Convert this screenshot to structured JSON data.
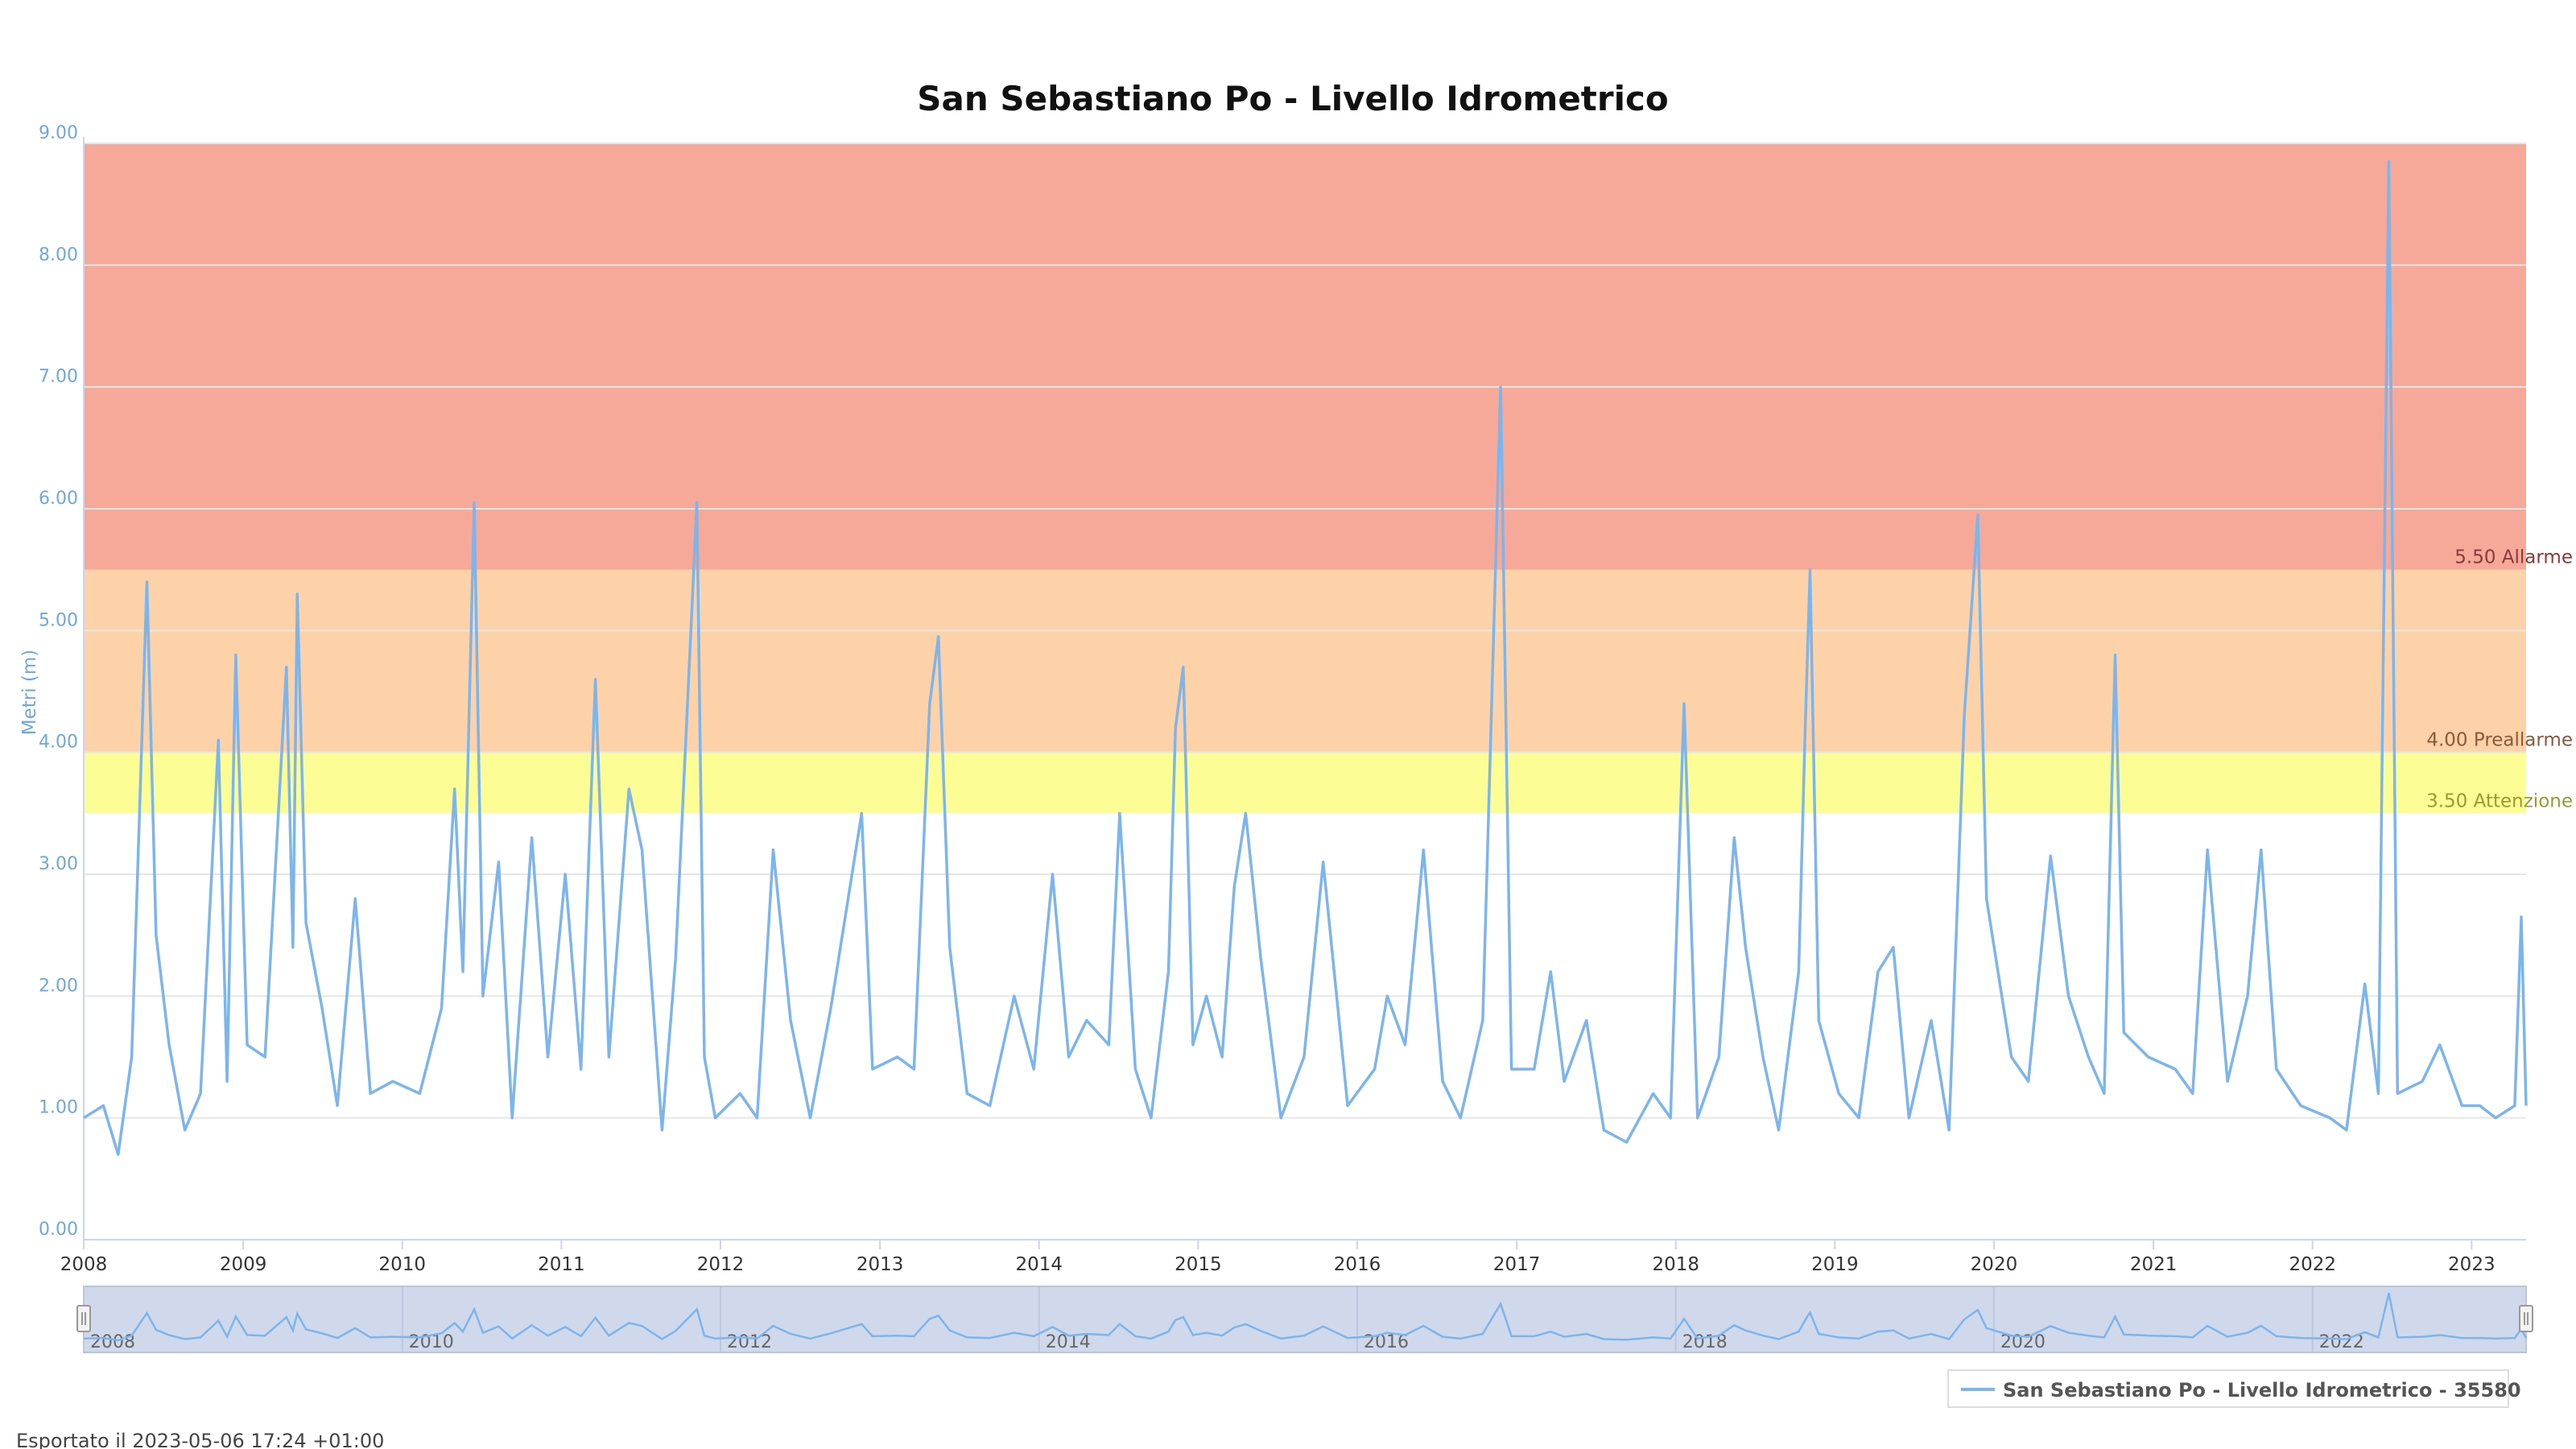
{
  "chart_data": {
    "type": "line",
    "title": "San Sebastiano Po - Livello Idrometrico",
    "ylabel": "Metri (m)",
    "ylim": [
      0,
      9
    ],
    "xlim": [
      "2008-01-01",
      "2023-05-06"
    ],
    "y_ticks": [
      "0.00",
      "1.00",
      "2.00",
      "3.00",
      "4.00",
      "5.00",
      "6.00",
      "7.00",
      "8.00",
      "9.00"
    ],
    "x_ticks": [
      "2008",
      "2009",
      "2010",
      "2011",
      "2012",
      "2013",
      "2014",
      "2015",
      "2016",
      "2017",
      "2018",
      "2019",
      "2020",
      "2021",
      "2022",
      "2023"
    ],
    "navigator_ticks": [
      "2008",
      "2010",
      "2012",
      "2014",
      "2016",
      "2018",
      "2020",
      "2022"
    ],
    "grid": true,
    "legend_position": "bottom-right",
    "thresholds": [
      {
        "value": 3.5,
        "label": "3.50 Attenzione",
        "from": 3.5,
        "to": 4.0,
        "color": "#fdfd96",
        "label_color": "#9a9a30"
      },
      {
        "value": 4.0,
        "label": "4.00 Preallarme",
        "from": 4.0,
        "to": 5.5,
        "color": "#fdd2a8",
        "label_color": "#8a5a3a"
      },
      {
        "value": 5.5,
        "label": "5.50 Allarme",
        "from": 5.5,
        "to": 9.0,
        "color": "#f6a899",
        "label_color": "#8b3a3a"
      }
    ],
    "series": [
      {
        "name": "San Sebastiano Po - Livello Idrometrico - 35580",
        "color": "#7cb5ec",
        "points": [
          [
            "2008-01-01",
            1.0
          ],
          [
            "2008-02-15",
            1.1
          ],
          [
            "2008-03-20",
            0.7
          ],
          [
            "2008-04-20",
            1.5
          ],
          [
            "2008-05-25",
            5.4
          ],
          [
            "2008-06-15",
            2.5
          ],
          [
            "2008-07-15",
            1.6
          ],
          [
            "2008-08-20",
            0.9
          ],
          [
            "2008-09-25",
            1.2
          ],
          [
            "2008-11-05",
            4.1
          ],
          [
            "2008-11-25",
            1.3
          ],
          [
            "2008-12-15",
            4.8
          ],
          [
            "2009-01-10",
            1.6
          ],
          [
            "2009-02-20",
            1.5
          ],
          [
            "2009-04-10",
            4.7
          ],
          [
            "2009-04-25",
            2.4
          ],
          [
            "2009-05-05",
            5.3
          ],
          [
            "2009-05-25",
            2.6
          ],
          [
            "2009-07-01",
            1.9
          ],
          [
            "2009-08-05",
            1.1
          ],
          [
            "2009-09-15",
            2.8
          ],
          [
            "2009-10-20",
            1.2
          ],
          [
            "2009-12-10",
            1.3
          ],
          [
            "2010-02-10",
            1.2
          ],
          [
            "2010-04-01",
            1.9
          ],
          [
            "2010-05-01",
            3.7
          ],
          [
            "2010-05-20",
            2.2
          ],
          [
            "2010-06-15",
            6.05
          ],
          [
            "2010-07-05",
            2.0
          ],
          [
            "2010-08-10",
            3.1
          ],
          [
            "2010-09-10",
            1.0
          ],
          [
            "2010-10-25",
            3.3
          ],
          [
            "2010-12-01",
            1.5
          ],
          [
            "2011-01-10",
            3.0
          ],
          [
            "2011-02-15",
            1.4
          ],
          [
            "2011-03-20",
            4.6
          ],
          [
            "2011-04-20",
            1.5
          ],
          [
            "2011-06-05",
            3.7
          ],
          [
            "2011-07-05",
            3.2
          ],
          [
            "2011-08-20",
            0.9
          ],
          [
            "2011-09-20",
            2.3
          ],
          [
            "2011-11-08",
            6.05
          ],
          [
            "2011-11-25",
            1.5
          ],
          [
            "2011-12-20",
            1.0
          ],
          [
            "2012-02-15",
            1.2
          ],
          [
            "2012-03-25",
            1.0
          ],
          [
            "2012-05-01",
            3.2
          ],
          [
            "2012-06-10",
            1.8
          ],
          [
            "2012-07-25",
            1.0
          ],
          [
            "2012-09-10",
            1.9
          ],
          [
            "2012-11-20",
            3.5
          ],
          [
            "2012-12-15",
            1.4
          ],
          [
            "2013-02-10",
            1.5
          ],
          [
            "2013-03-20",
            1.4
          ],
          [
            "2013-04-25",
            4.4
          ],
          [
            "2013-05-15",
            4.95
          ],
          [
            "2013-06-10",
            2.4
          ],
          [
            "2013-07-20",
            1.2
          ],
          [
            "2013-09-10",
            1.1
          ],
          [
            "2013-11-05",
            2.0
          ],
          [
            "2013-12-20",
            1.4
          ],
          [
            "2014-02-01",
            3.0
          ],
          [
            "2014-03-10",
            1.5
          ],
          [
            "2014-04-20",
            1.8
          ],
          [
            "2014-06-10",
            1.6
          ],
          [
            "2014-07-05",
            3.5
          ],
          [
            "2014-08-10",
            1.4
          ],
          [
            "2014-09-15",
            1.0
          ],
          [
            "2014-10-25",
            2.2
          ],
          [
            "2014-11-10",
            4.2
          ],
          [
            "2014-11-28",
            4.7
          ],
          [
            "2014-12-20",
            1.6
          ],
          [
            "2015-01-20",
            2.0
          ],
          [
            "2015-02-25",
            1.5
          ],
          [
            "2015-03-25",
            2.9
          ],
          [
            "2015-04-20",
            3.5
          ],
          [
            "2015-05-25",
            2.3
          ],
          [
            "2015-07-10",
            1.0
          ],
          [
            "2015-09-01",
            1.5
          ],
          [
            "2015-10-15",
            3.1
          ],
          [
            "2015-12-10",
            1.1
          ],
          [
            "2016-02-10",
            1.4
          ],
          [
            "2016-03-10",
            2.0
          ],
          [
            "2016-04-20",
            1.6
          ],
          [
            "2016-06-01",
            3.2
          ],
          [
            "2016-07-15",
            1.3
          ],
          [
            "2016-08-25",
            1.0
          ],
          [
            "2016-10-15",
            1.8
          ],
          [
            "2016-11-25",
            7.0
          ],
          [
            "2016-12-20",
            1.4
          ],
          [
            "2017-02-10",
            1.4
          ],
          [
            "2017-03-20",
            2.2
          ],
          [
            "2017-04-20",
            1.3
          ],
          [
            "2017-06-10",
            1.8
          ],
          [
            "2017-07-20",
            0.9
          ],
          [
            "2017-09-10",
            0.8
          ],
          [
            "2017-11-10",
            1.2
          ],
          [
            "2017-12-20",
            1.0
          ],
          [
            "2018-01-20",
            4.4
          ],
          [
            "2018-02-20",
            1.0
          ],
          [
            "2018-04-10",
            1.5
          ],
          [
            "2018-05-15",
            3.3
          ],
          [
            "2018-06-10",
            2.4
          ],
          [
            "2018-07-20",
            1.5
          ],
          [
            "2018-08-25",
            0.9
          ],
          [
            "2018-10-10",
            2.2
          ],
          [
            "2018-10-25",
            4.2
          ],
          [
            "2018-11-05",
            5.5
          ],
          [
            "2018-11-25",
            1.8
          ],
          [
            "2019-01-10",
            1.2
          ],
          [
            "2019-02-25",
            1.0
          ],
          [
            "2019-04-10",
            2.2
          ],
          [
            "2019-05-15",
            2.4
          ],
          [
            "2019-06-20",
            1.0
          ],
          [
            "2019-08-10",
            1.8
          ],
          [
            "2019-09-20",
            0.9
          ],
          [
            "2019-10-25",
            4.3
          ],
          [
            "2019-11-25",
            5.95
          ],
          [
            "2019-12-15",
            2.8
          ],
          [
            "2020-02-10",
            1.5
          ],
          [
            "2020-03-20",
            1.3
          ],
          [
            "2020-05-10",
            3.15
          ],
          [
            "2020-06-20",
            2.0
          ],
          [
            "2020-08-05",
            1.5
          ],
          [
            "2020-09-10",
            1.2
          ],
          [
            "2020-10-05",
            4.8
          ],
          [
            "2020-10-25",
            1.7
          ],
          [
            "2020-12-20",
            1.5
          ],
          [
            "2021-02-20",
            1.4
          ],
          [
            "2021-04-01",
            1.2
          ],
          [
            "2021-05-05",
            3.2
          ],
          [
            "2021-06-20",
            1.3
          ],
          [
            "2021-08-05",
            2.0
          ],
          [
            "2021-09-05",
            3.2
          ],
          [
            "2021-10-10",
            1.4
          ],
          [
            "2021-12-05",
            1.1
          ],
          [
            "2022-02-10",
            1.0
          ],
          [
            "2022-03-20",
            0.9
          ],
          [
            "2022-05-01",
            2.1
          ],
          [
            "2022-06-01",
            1.2
          ],
          [
            "2022-06-25",
            8.85
          ],
          [
            "2022-07-15",
            1.2
          ],
          [
            "2022-09-10",
            1.3
          ],
          [
            "2022-10-20",
            1.6
          ],
          [
            "2022-12-10",
            1.1
          ],
          [
            "2023-01-20",
            1.1
          ],
          [
            "2023-02-25",
            1.0
          ],
          [
            "2023-04-10",
            1.1
          ],
          [
            "2023-04-25",
            2.65
          ],
          [
            "2023-05-06",
            1.1
          ]
        ]
      }
    ]
  },
  "legend": {
    "label": "San Sebastiano Po - Livello Idrometrico - 35580"
  },
  "footer": {
    "export_text": "Esportato il 2023-05-06 17:24 +01:00"
  }
}
